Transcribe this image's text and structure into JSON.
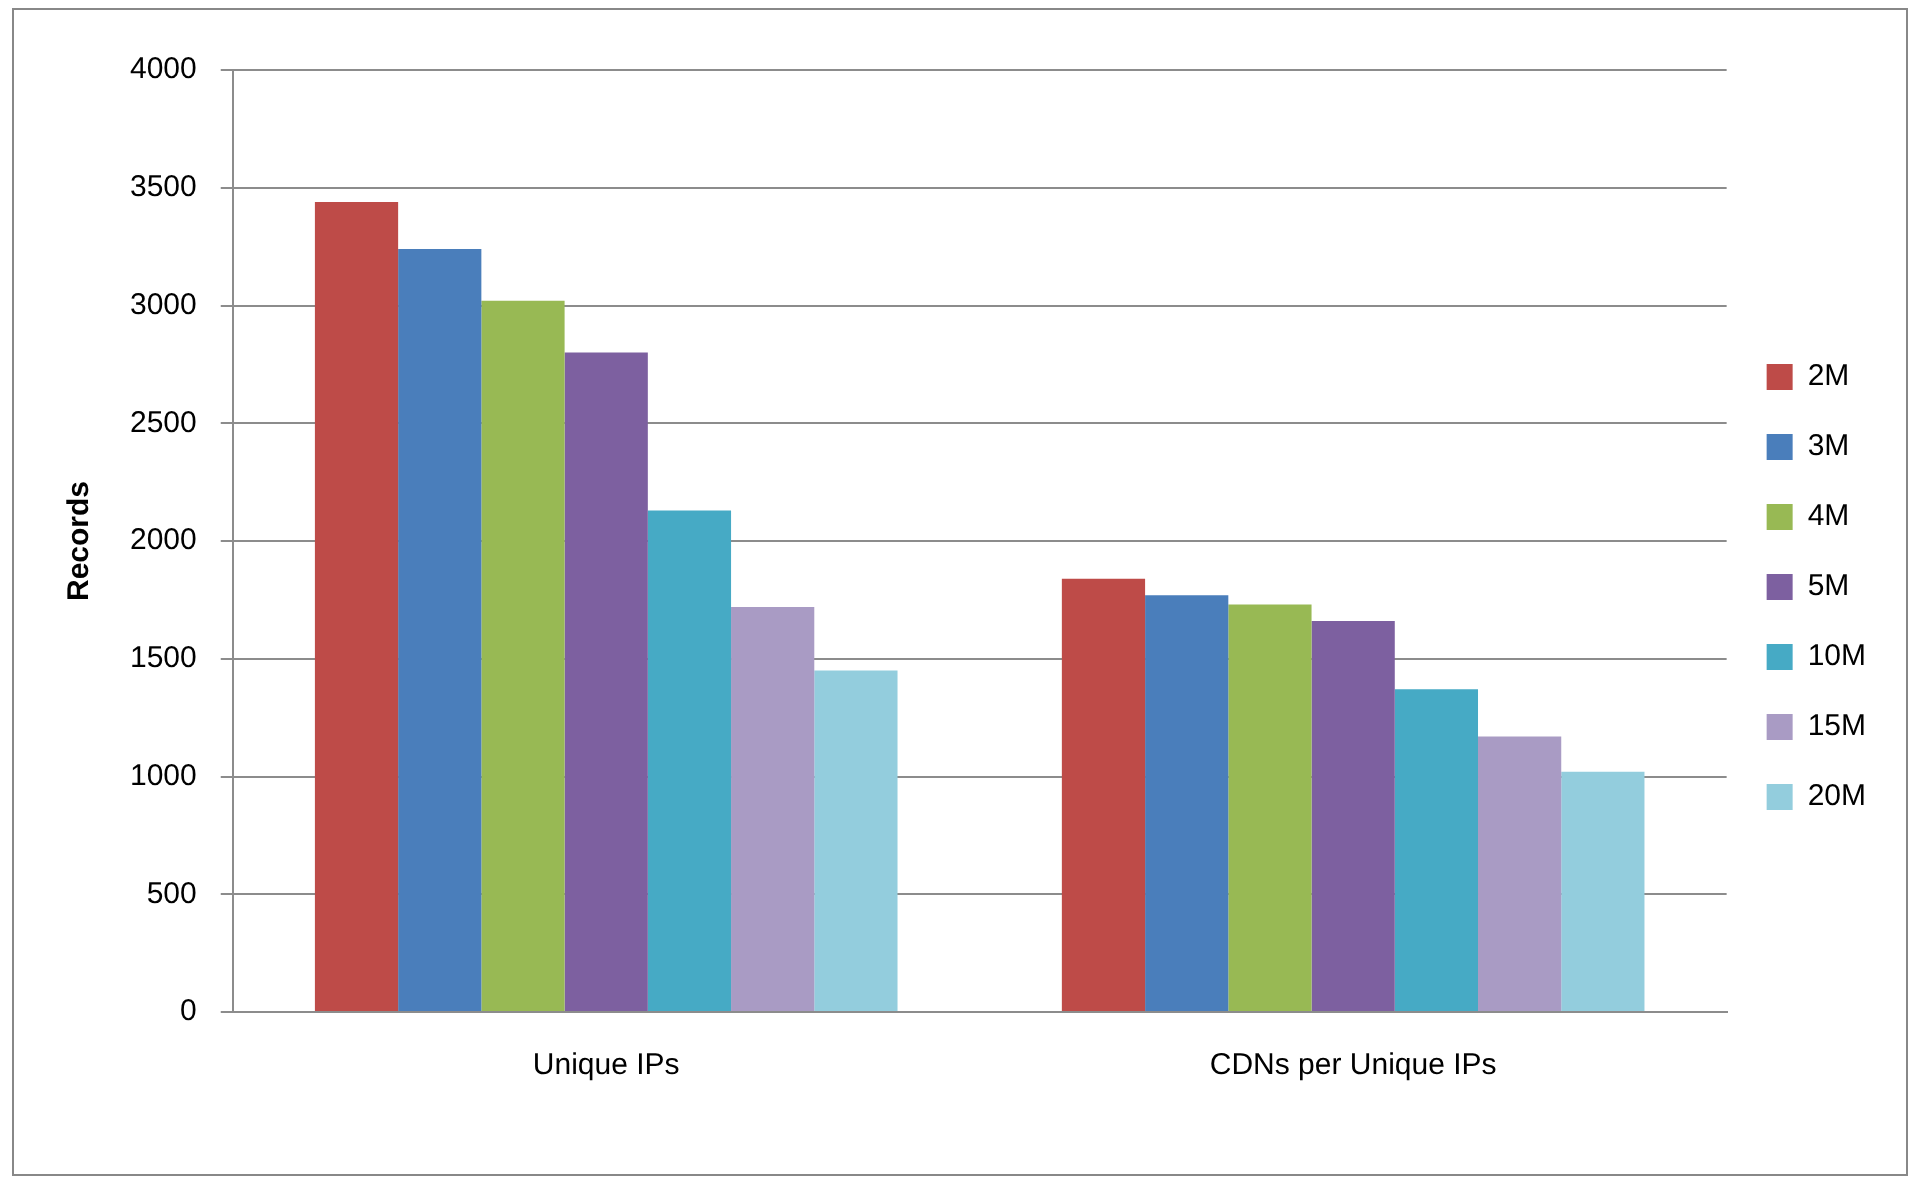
{
  "chart_data": {
    "type": "bar",
    "ylabel": "Records",
    "categories": [
      "Unique IPs",
      "CDNs per Unique IPs"
    ],
    "series": [
      {
        "name": "2M",
        "color": "#be4b48",
        "values": [
          3440,
          1840
        ]
      },
      {
        "name": "3M",
        "color": "#4a7ebb",
        "values": [
          3240,
          1770
        ]
      },
      {
        "name": "4M",
        "color": "#98b954",
        "values": [
          3020,
          1730
        ]
      },
      {
        "name": "5M",
        "color": "#7d60a0",
        "values": [
          2800,
          1660
        ]
      },
      {
        "name": "10M",
        "color": "#46aac5",
        "values": [
          2130,
          1370
        ]
      },
      {
        "name": "15M",
        "color": "#a99bc4",
        "values": [
          1720,
          1170
        ]
      },
      {
        "name": "20M",
        "color": "#93cddd",
        "values": [
          1450,
          1020
        ]
      }
    ],
    "ylim": [
      0,
      4000
    ],
    "yticks": [
      0,
      500,
      1000,
      1500,
      2000,
      2500,
      3000,
      3500,
      4000
    ],
    "grid": "y",
    "legend": "right"
  }
}
